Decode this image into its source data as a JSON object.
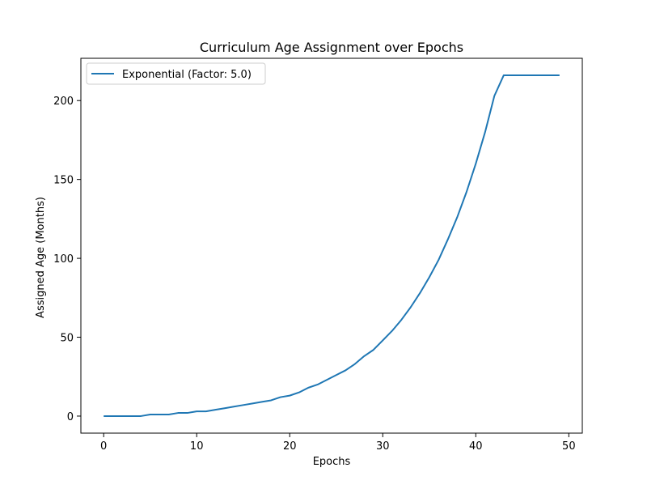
{
  "chart_data": {
    "type": "line",
    "title": "Curriculum Age Assignment over Epochs",
    "xlabel": "Epochs",
    "ylabel": "Assigned Age (Months)",
    "xlim": [
      -2.45,
      51.45
    ],
    "ylim": [
      -10.8,
      226.8
    ],
    "xticks": [
      0,
      10,
      20,
      30,
      40,
      50
    ],
    "yticks": [
      0,
      50,
      100,
      150,
      200
    ],
    "grid": false,
    "legend_position": "upper-left",
    "series": [
      {
        "name": "Exponential (Factor: 5.0)",
        "color": "#1f77b4",
        "x": [
          0,
          1,
          2,
          3,
          4,
          5,
          6,
          7,
          8,
          9,
          10,
          11,
          12,
          13,
          14,
          15,
          16,
          17,
          18,
          19,
          20,
          21,
          22,
          23,
          24,
          25,
          26,
          27,
          28,
          29,
          30,
          31,
          32,
          33,
          34,
          35,
          36,
          37,
          38,
          39,
          40,
          41,
          42,
          43,
          44,
          45,
          46,
          47,
          48,
          49
        ],
        "y": [
          0,
          0,
          0,
          0,
          0,
          1,
          1,
          1,
          2,
          2,
          3,
          3,
          4,
          5,
          6,
          7,
          8,
          9,
          10,
          12,
          13,
          15,
          18,
          20,
          23,
          26,
          29,
          33,
          38,
          42,
          48,
          54,
          61,
          69,
          78,
          88,
          99,
          112,
          126,
          142,
          160,
          180,
          203,
          216,
          216,
          216,
          216,
          216,
          216,
          216
        ]
      }
    ]
  }
}
